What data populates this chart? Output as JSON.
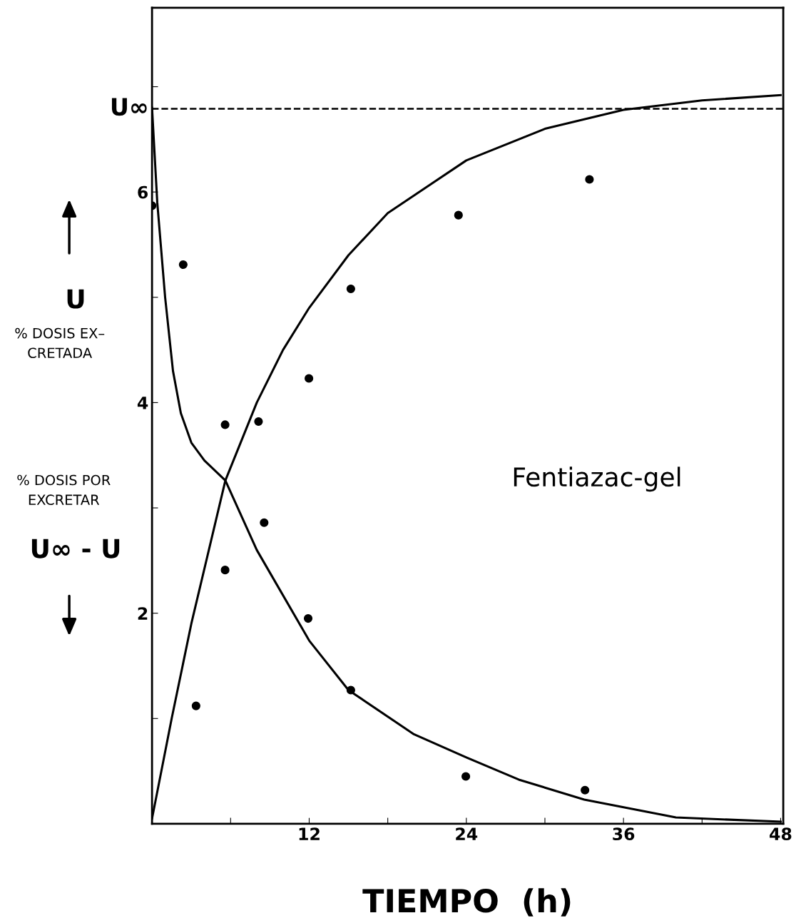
{
  "chart_data": {
    "type": "scatter",
    "xlabel": "TIEMPO  (h)",
    "xlim": [
      0,
      48.2
    ],
    "ylim": [
      0,
      7.75
    ],
    "xticks": [
      {
        "value": 6,
        "label": null
      },
      12,
      {
        "value": 18,
        "label": null
      },
      24,
      {
        "value": 30,
        "label": null
      },
      36,
      {
        "value": 42,
        "label": null
      },
      48
    ],
    "yticks": [
      {
        "value": 1,
        "label": null
      },
      2,
      {
        "value": 3,
        "label": null
      },
      4,
      {
        "value": 5,
        "label": null
      },
      6,
      {
        "value": 7,
        "label": null
      }
    ],
    "grid": false,
    "marker": "circle",
    "series": [
      {
        "color": "#000000",
        "x": [
          3.36,
          5.58,
          8.13,
          11.98,
          15.18,
          23.4,
          33.4
        ],
        "values": [
          1.12,
          2.41,
          3.82,
          4.23,
          5.08,
          5.78,
          6.12
        ]
      },
      {
        "color": "#000000",
        "x": [
          0,
          2.38,
          5.58,
          8.56,
          11.92,
          15.18,
          23.96,
          33.06
        ],
        "values": [
          5.87,
          5.31,
          3.79,
          2.86,
          1.95,
          1.27,
          0.45,
          0.32
        ]
      },
      {
        "type": "line",
        "color": "#000000",
        "marker": "none",
        "line_style": "solid",
        "x": [
          0,
          1.5,
          3,
          5.6,
          8,
          10,
          12,
          15,
          18,
          24,
          30,
          36,
          42,
          48
        ],
        "values": [
          0.05,
          1.0,
          1.9,
          3.26,
          4.0,
          4.5,
          4.9,
          5.4,
          5.8,
          6.3,
          6.6,
          6.78,
          6.87,
          6.92
        ]
      },
      {
        "type": "line",
        "color": "#000000",
        "marker": "none",
        "line_style": "solid",
        "x": [
          0,
          0.4,
          1,
          1.6,
          2.2,
          3,
          4,
          5.6,
          8,
          12,
          15,
          20,
          24,
          28,
          33,
          40,
          48
        ],
        "values": [
          6.8,
          5.9,
          5.0,
          4.3,
          3.9,
          3.62,
          3.45,
          3.26,
          2.6,
          1.74,
          1.27,
          0.85,
          0.63,
          0.42,
          0.23,
          0.06,
          0.02
        ]
      }
    ],
    "ref_lines": [
      {
        "axis": "y",
        "value": 6.79,
        "label": "U∞",
        "color": "#000000",
        "line_style": "dashed"
      }
    ],
    "annotations": [
      "U",
      "% DOSIS EX–\nCRETADA",
      "% DOSIS POR\nEXCRETAR",
      "U∞ - U",
      "Fentiazac-gel"
    ]
  }
}
